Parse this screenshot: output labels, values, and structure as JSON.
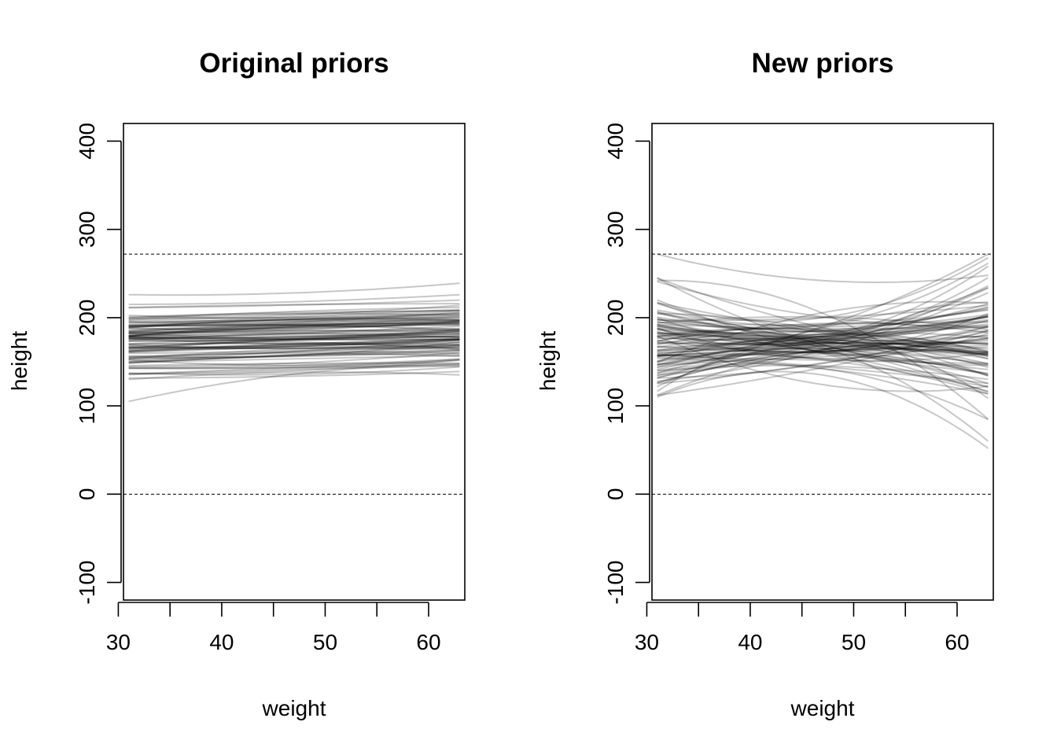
{
  "chart_data": [
    {
      "type": "line",
      "title": "Original priors",
      "xlabel": "weight",
      "ylabel": "height",
      "xlim": [
        30.5,
        63.5
      ],
      "ylim": [
        -120,
        420
      ],
      "xticks": [
        30,
        40,
        50,
        60
      ],
      "xticks_minor": [
        30,
        35,
        40,
        45,
        50,
        55,
        60
      ],
      "yticks": [
        -100,
        0,
        100,
        200,
        300,
        400
      ],
      "reference_lines": [
        0,
        272
      ],
      "x_range": [
        31,
        63
      ],
      "grid": false,
      "n_curves": 100,
      "series_envelope": {
        "x": [
          31,
          47,
          63
        ],
        "low": [
          105,
          140,
          135
        ],
        "high": [
          226,
          230,
          239
        ],
        "center": [
          175,
          178,
          182
        ]
      },
      "series": [
        {
          "x": [
            31,
            47,
            63
          ],
          "values": [
            105,
            136,
            146
          ]
        },
        {
          "x": [
            31,
            47,
            63
          ],
          "values": [
            226,
            228,
            239
          ]
        },
        {
          "x": [
            31,
            47,
            63
          ],
          "values": [
            215,
            218,
            226
          ]
        },
        {
          "x": [
            31,
            47,
            63
          ],
          "values": [
            130,
            138,
            135
          ]
        }
      ]
    },
    {
      "type": "line",
      "title": "New priors",
      "xlabel": "weight",
      "ylabel": "height",
      "xlim": [
        30.5,
        63.5
      ],
      "ylim": [
        -120,
        420
      ],
      "xticks": [
        30,
        40,
        50,
        60
      ],
      "xticks_minor": [
        30,
        35,
        40,
        45,
        50,
        55,
        60
      ],
      "yticks": [
        -100,
        0,
        100,
        200,
        300,
        400
      ],
      "reference_lines": [
        0,
        272
      ],
      "x_range": [
        31,
        63
      ],
      "grid": false,
      "n_curves": 100,
      "series_envelope": {
        "x": [
          31,
          47,
          63
        ],
        "low": [
          110,
          125,
          52
        ],
        "high": [
          272,
          240,
          272
        ],
        "center": [
          180,
          175,
          178
        ]
      },
      "series": [
        {
          "x": [
            31,
            47,
            63
          ],
          "values": [
            272,
            242,
            248
          ]
        },
        {
          "x": [
            31,
            47,
            63
          ],
          "values": [
            110,
            135,
            52
          ]
        },
        {
          "x": [
            31,
            47,
            63
          ],
          "values": [
            150,
            190,
            272
          ]
        },
        {
          "x": [
            31,
            47,
            63
          ],
          "values": [
            242,
            205,
            85
          ]
        }
      ]
    }
  ]
}
